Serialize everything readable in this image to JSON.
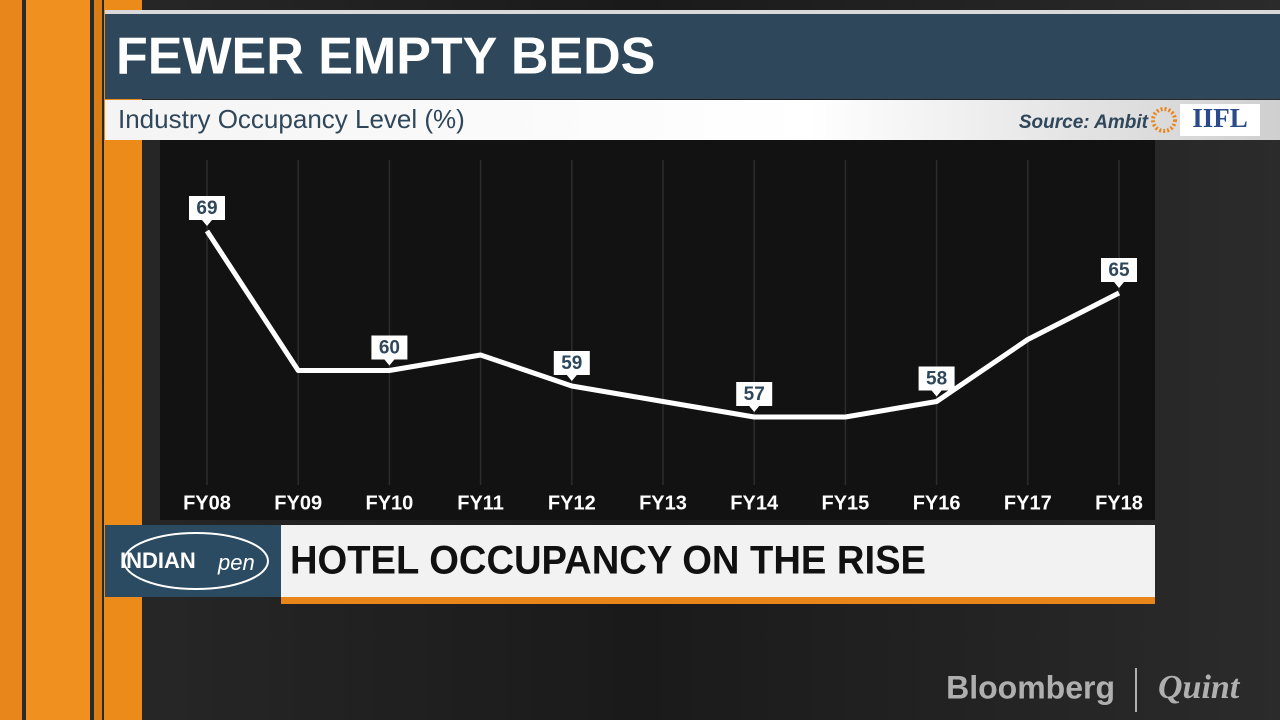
{
  "chart_data": {
    "type": "line",
    "title": "FEWER EMPTY BEDS",
    "subtitle": "Industry Occupancy Level (%)",
    "source": "Source: Ambit",
    "source_logo": "IIFL",
    "categories": [
      "FY08",
      "FY09",
      "FY10",
      "FY11",
      "FY12",
      "FY13",
      "FY14",
      "FY15",
      "FY16",
      "FY17",
      "FY18"
    ],
    "values": [
      69,
      60,
      60,
      61,
      59,
      58,
      57,
      57,
      58,
      62,
      65
    ],
    "color": "#ffffff",
    "grid": true
  },
  "lower_third": {
    "logo_main": "INDIAN",
    "logo_script": "pen",
    "headline": "HOTEL OCCUPANCY ON THE RISE"
  },
  "watermark": {
    "brand": "Bloomberg",
    "partner": "Quint"
  }
}
